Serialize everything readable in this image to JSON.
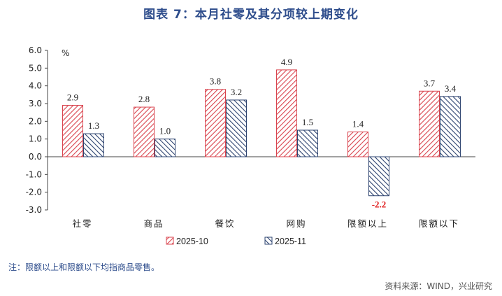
{
  "title": "图表 7：本月社零及其分项较上期变化",
  "note": "注：限额以上和限额以下均指商品零售。",
  "source": "资料来源：WIND，兴业研究",
  "colors": {
    "series1": "#d9434d",
    "series2": "#2e4470",
    "title": "#2e4d8c",
    "negative_label": "#e02020"
  },
  "chart_data": {
    "type": "bar",
    "title": "图表 7：本月社零及其分项较上期变化",
    "unit_label": "%",
    "categories": [
      "社零",
      "商品",
      "餐饮",
      "网购",
      "限额以上",
      "限额以下"
    ],
    "series": [
      {
        "name": "2025-10",
        "values": [
          2.9,
          2.8,
          3.8,
          4.9,
          1.4,
          3.7
        ],
        "pattern": "red-diagonal-hatch"
      },
      {
        "name": "2025-11",
        "values": [
          1.3,
          1.0,
          3.2,
          1.5,
          -2.2,
          3.4
        ],
        "pattern": "navy-diagonal-hatch"
      }
    ],
    "ylim": [
      -3.0,
      6.0
    ],
    "yticks": [
      "6.0",
      "5.0",
      "4.0",
      "3.0",
      "2.0",
      "1.0",
      "0.0",
      "-1.0",
      "-2.0",
      "-3.0"
    ],
    "grid": false,
    "legend_position": "bottom-center"
  }
}
